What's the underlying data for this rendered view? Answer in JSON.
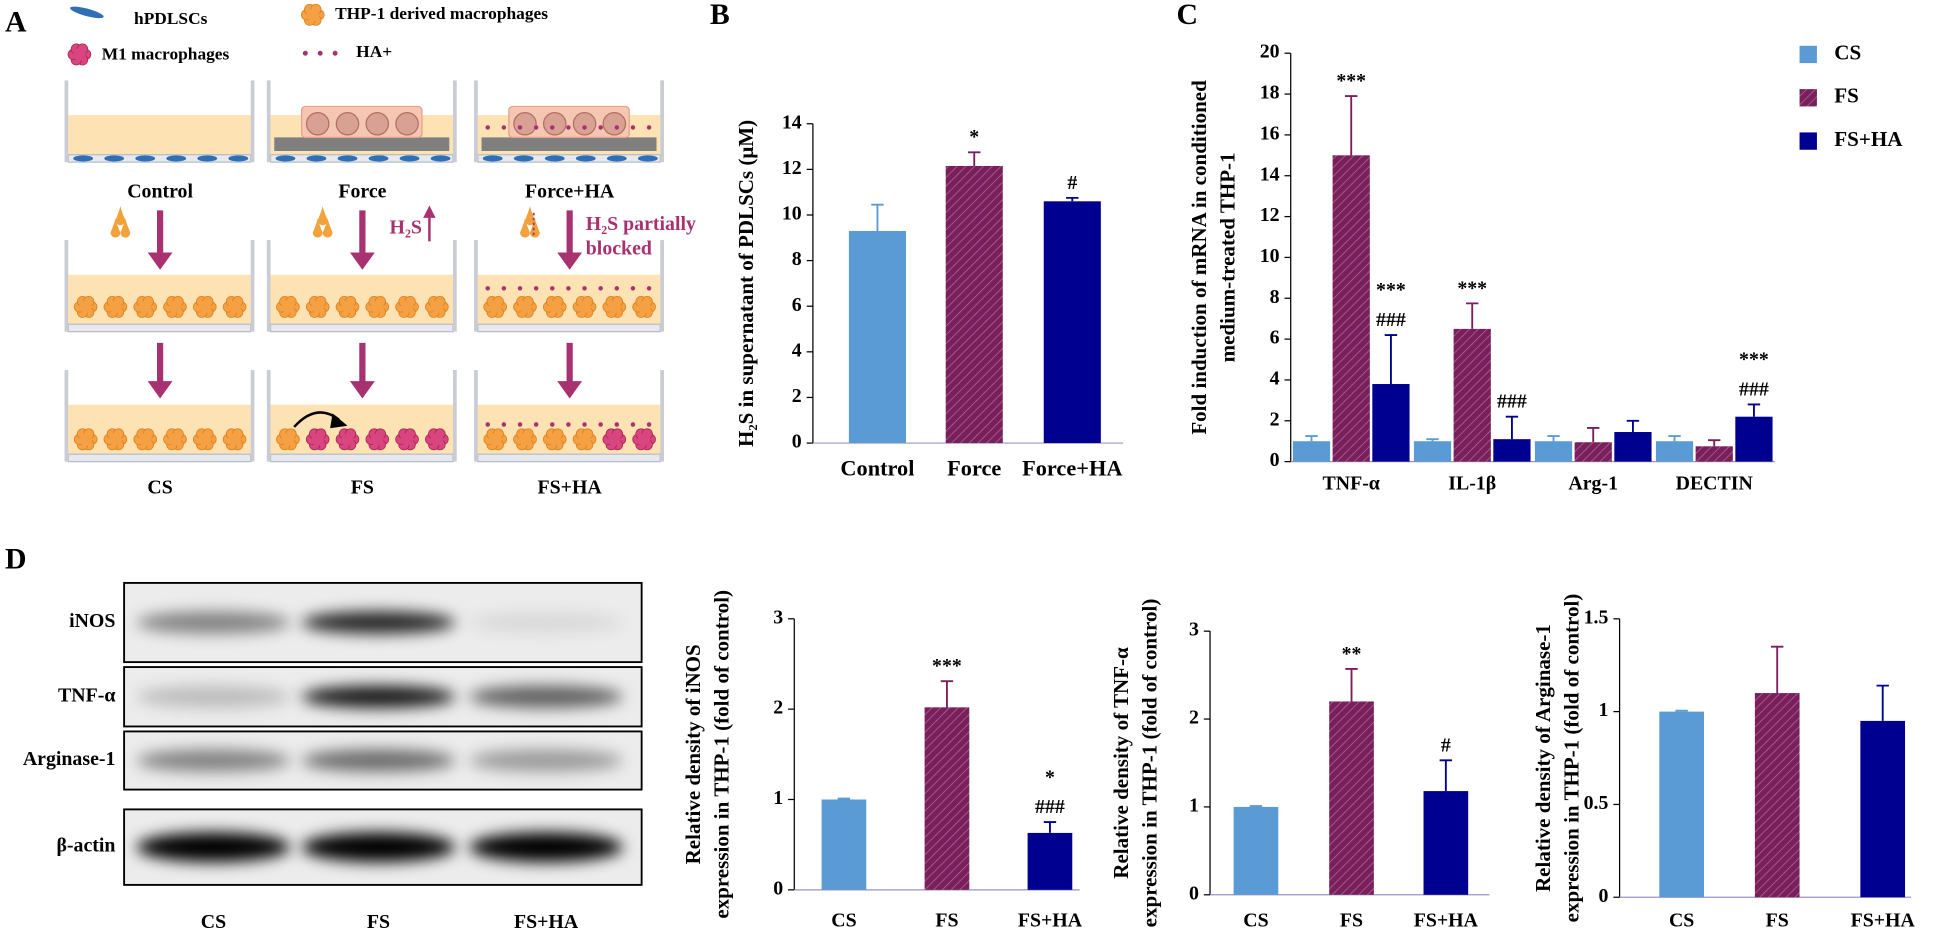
{
  "panel_letters": [
    "A",
    "B",
    "C",
    "D"
  ],
  "panel_a": {
    "legend": [
      "hPDLSCs",
      "THP-1 derived macrophages",
      "M1 macrophages",
      "HA+"
    ],
    "columns": [
      "Control",
      "Force",
      "Force+HA"
    ],
    "h2s_up": "H₂S",
    "h2s_blocked": [
      "H₂S partially",
      "blocked"
    ],
    "groups": [
      "CS",
      "FS",
      "FS+HA"
    ]
  },
  "panel_d_blot": {
    "rows": [
      "iNOS",
      "TNF-α",
      "Arginase-1",
      "β-actin"
    ],
    "columns": [
      "CS",
      "FS",
      "FS+HA"
    ]
  },
  "chart_data": [
    {
      "type": "bar",
      "ylabel": [
        "H₂S in supernatant of PDLSCs (μM)"
      ],
      "categories": [
        "Control",
        "Force",
        "Force+HA"
      ],
      "values": [
        9.3,
        12.15,
        10.6
      ],
      "errors": [
        1.15,
        0.6,
        0.15
      ],
      "colors": [
        "#5b9bd5",
        "#7a1f5c",
        "#000090"
      ],
      "hatched": [
        false,
        true,
        false
      ],
      "annotations": [
        [],
        [
          "*"
        ],
        [
          "#"
        ]
      ],
      "ylim": [
        0,
        14
      ],
      "yticks": [
        0,
        2,
        4,
        6,
        8,
        10,
        12,
        14
      ]
    },
    {
      "type": "bar",
      "ylabel": [
        "Fold induction of mRNA in conditioned",
        "medium-treated THP-1"
      ],
      "categories": [
        "TNF-α",
        "IL-1β",
        "Arg-1",
        "DECTIN"
      ],
      "series": [
        {
          "name": "CS",
          "color": "#5b9bd5",
          "hatched": false,
          "values": [
            1.0,
            1.0,
            1.0,
            1.0
          ],
          "errors": [
            0.25,
            0.1,
            0.25,
            0.25
          ],
          "annotations": [
            [],
            [],
            [],
            []
          ]
        },
        {
          "name": "FS",
          "color": "#7a1f5c",
          "hatched": true,
          "values": [
            15.0,
            6.5,
            0.95,
            0.75
          ],
          "errors": [
            2.9,
            1.25,
            0.7,
            0.3
          ],
          "annotations": [
            [
              "***"
            ],
            [
              "***"
            ],
            [],
            []
          ]
        },
        {
          "name": "FS+HA",
          "color": "#000090",
          "hatched": false,
          "values": [
            3.8,
            1.1,
            1.45,
            2.2
          ],
          "errors": [
            2.4,
            1.1,
            0.55,
            0.6
          ],
          "annotations": [
            [
              "***",
              "###"
            ],
            [
              "###"
            ],
            [],
            [
              "***",
              "###"
            ]
          ]
        }
      ],
      "legend": "upper right",
      "ylim": [
        0,
        20
      ],
      "yticks": [
        0,
        2,
        4,
        6,
        8,
        10,
        12,
        14,
        16,
        18,
        20
      ]
    },
    {
      "type": "bar",
      "ylabel": [
        "Relative density of iNOS",
        "expression in THP-1  (fold of control)"
      ],
      "categories": [
        "CS",
        "FS",
        "FS+HA"
      ],
      "values": [
        1.0,
        2.02,
        0.63
      ],
      "errors": [
        0.01,
        0.29,
        0.12
      ],
      "colors": [
        "#5b9bd5",
        "#7a1f5c",
        "#000090"
      ],
      "hatched": [
        false,
        true,
        false
      ],
      "annotations": [
        [],
        [
          "***"
        ],
        [
          "*",
          "###"
        ]
      ],
      "ylim": [
        0,
        3
      ],
      "yticks": [
        0,
        1,
        2,
        3
      ]
    },
    {
      "type": "bar",
      "ylabel": [
        "Relative density of TNF-α",
        "expression in THP-1  (fold of control)"
      ],
      "categories": [
        "CS",
        "FS",
        "FS+HA"
      ],
      "values": [
        1.0,
        2.2,
        1.18
      ],
      "errors": [
        0.01,
        0.37,
        0.35
      ],
      "colors": [
        "#5b9bd5",
        "#7a1f5c",
        "#000090"
      ],
      "hatched": [
        false,
        true,
        false
      ],
      "annotations": [
        [],
        [
          "**"
        ],
        [
          "#"
        ]
      ],
      "ylim": [
        0,
        3
      ],
      "yticks": [
        0,
        1,
        2,
        3
      ]
    },
    {
      "type": "bar",
      "ylabel": [
        "Relative density of Arginase-1",
        "expression in THP-1  (fold of control)"
      ],
      "categories": [
        "CS",
        "FS",
        "FS+HA"
      ],
      "values": [
        1.0,
        1.1,
        0.95
      ],
      "errors": [
        0.005,
        0.25,
        0.19
      ],
      "colors": [
        "#5b9bd5",
        "#7a1f5c",
        "#000090"
      ],
      "hatched": [
        false,
        true,
        false
      ],
      "annotations": [
        [],
        [],
        []
      ],
      "ylim": [
        0,
        1.5
      ],
      "yticks": [
        0,
        0.5,
        1,
        1.5
      ]
    }
  ]
}
